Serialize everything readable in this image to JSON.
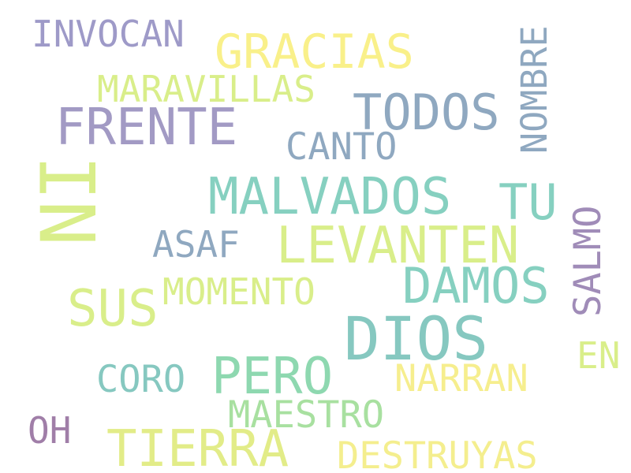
{
  "words": [
    {
      "text": "INVOCAN",
      "color": "#9e9ac8",
      "rotated": false
    },
    {
      "text": "GRACIAS",
      "color": "#f9f08a",
      "rotated": false
    },
    {
      "text": "NOMBRE",
      "color": "#8fa8c0",
      "rotated": true
    },
    {
      "text": "MARAVILLAS",
      "color": "#d9ee8a",
      "rotated": false
    },
    {
      "text": "TODOS",
      "color": "#8fa8c0",
      "rotated": false
    },
    {
      "text": "FRENTE",
      "color": "#a29ac4",
      "rotated": false
    },
    {
      "text": "CANTO",
      "color": "#8fa8c0",
      "rotated": false
    },
    {
      "text": "NI",
      "color": "#d9ee8a",
      "rotated": true
    },
    {
      "text": "MALVADOS",
      "color": "#86d0c0",
      "rotated": false
    },
    {
      "text": "TU",
      "color": "#86d0c0",
      "rotated": false
    },
    {
      "text": "SALMO",
      "color": "#a08cb8",
      "rotated": true
    },
    {
      "text": "ASAF",
      "color": "#8fa8c0",
      "rotated": false
    },
    {
      "text": "LEVANTEN",
      "color": "#d9ee8a",
      "rotated": false
    },
    {
      "text": "MOMENTO",
      "color": "#d9ee8a",
      "rotated": false
    },
    {
      "text": "DAMOS",
      "color": "#86d0c0",
      "rotated": false
    },
    {
      "text": "SUS",
      "color": "#d9ee8a",
      "rotated": false
    },
    {
      "text": "DIOS",
      "color": "#86c8c0",
      "rotated": false
    },
    {
      "text": "EN",
      "color": "#d9ee8a",
      "rotated": false
    },
    {
      "text": "CORO",
      "color": "#86c8c0",
      "rotated": false
    },
    {
      "text": "PERO",
      "color": "#8ed8b0",
      "rotated": false
    },
    {
      "text": "NARRAN",
      "color": "#f6ee8e",
      "rotated": false
    },
    {
      "text": "MAESTRO",
      "color": "#a8e0a0",
      "rotated": false
    },
    {
      "text": "OH",
      "color": "#a07ea8",
      "rotated": false
    },
    {
      "text": "TIERRA",
      "color": "#e2ec88",
      "rotated": false
    },
    {
      "text": "DESTRUYAS",
      "color": "#f4ee8e",
      "rotated": false
    }
  ]
}
